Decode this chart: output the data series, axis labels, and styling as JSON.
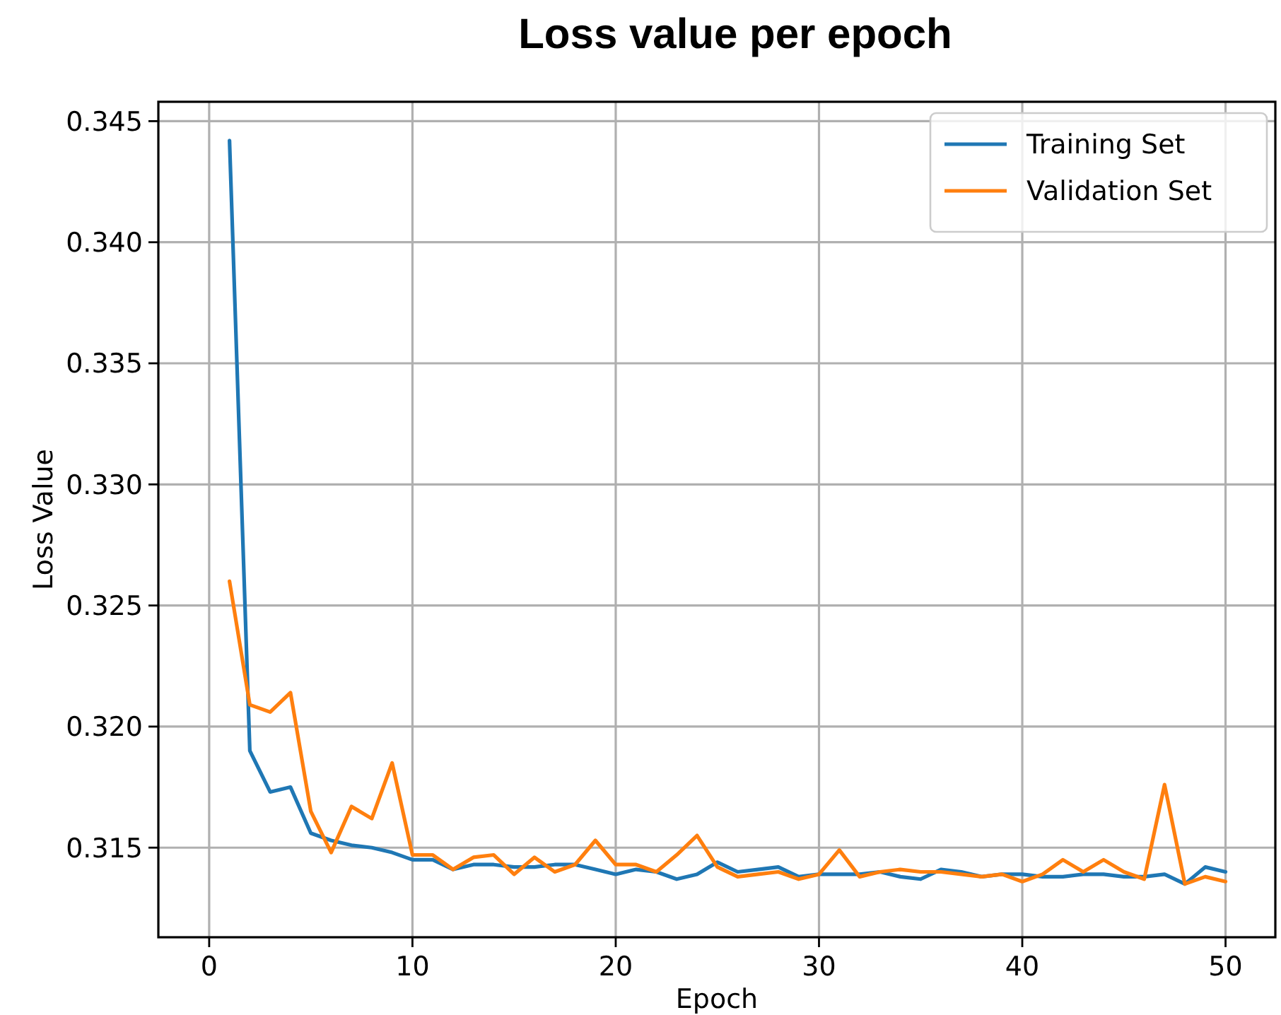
{
  "chart_data": {
    "type": "line",
    "title": "Loss value per epoch",
    "xlabel": "Epoch",
    "ylabel": "Loss Value",
    "x": [
      1,
      2,
      3,
      4,
      5,
      6,
      7,
      8,
      9,
      10,
      11,
      12,
      13,
      14,
      15,
      16,
      17,
      18,
      19,
      20,
      21,
      22,
      23,
      24,
      25,
      26,
      27,
      28,
      29,
      30,
      31,
      32,
      33,
      34,
      35,
      36,
      37,
      38,
      39,
      40,
      41,
      42,
      43,
      44,
      45,
      46,
      47,
      48,
      49,
      50
    ],
    "series": [
      {
        "name": "Training Set",
        "color": "#1f77b4",
        "values": [
          0.3442,
          0.319,
          0.3173,
          0.3175,
          0.3156,
          0.3153,
          0.3151,
          0.315,
          0.3148,
          0.3145,
          0.3145,
          0.3141,
          0.3143,
          0.3143,
          0.3142,
          0.3142,
          0.3143,
          0.3143,
          0.3141,
          0.3139,
          0.3141,
          0.314,
          0.3137,
          0.3139,
          0.3144,
          0.314,
          0.3141,
          0.3142,
          0.3138,
          0.3139,
          0.3139,
          0.3139,
          0.314,
          0.3138,
          0.3137,
          0.3141,
          0.314,
          0.3138,
          0.3139,
          0.3139,
          0.3138,
          0.3138,
          0.3139,
          0.3139,
          0.3138,
          0.3138,
          0.3139,
          0.3135,
          0.3142,
          0.314
        ]
      },
      {
        "name": "Validation Set",
        "color": "#ff7f0e",
        "values": [
          0.326,
          0.3209,
          0.3206,
          0.3214,
          0.3165,
          0.3148,
          0.3167,
          0.3162,
          0.3185,
          0.3147,
          0.3147,
          0.3141,
          0.3146,
          0.3147,
          0.3139,
          0.3146,
          0.314,
          0.3143,
          0.3153,
          0.3143,
          0.3143,
          0.314,
          0.3147,
          0.3155,
          0.3142,
          0.3138,
          0.3139,
          0.314,
          0.3137,
          0.3139,
          0.3149,
          0.3138,
          0.314,
          0.3141,
          0.314,
          0.314,
          0.3139,
          0.3138,
          0.3139,
          0.3136,
          0.3139,
          0.3145,
          0.314,
          0.3145,
          0.314,
          0.3137,
          0.3176,
          0.3135,
          0.3138,
          0.3136
        ]
      }
    ],
    "xlim": [
      -2.5,
      52.45
    ],
    "xticks": [
      0,
      10,
      20,
      30,
      40,
      50
    ],
    "ylim": [
      0.3113,
      0.3458
    ],
    "yticks": [
      0.315,
      {
        "value": 0.32,
        "label": "0.320"
      },
      0.325,
      {
        "value": 0.33,
        "label": "0.330"
      },
      0.335,
      {
        "value": 0.34,
        "label": "0.340"
      },
      0.345
    ],
    "grid": true,
    "legend": "top right",
    "marker": "none",
    "line_style": "solid"
  }
}
